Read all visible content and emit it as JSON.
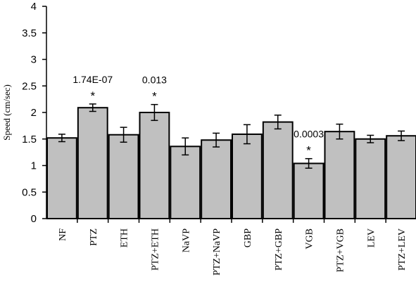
{
  "chart_data": {
    "type": "bar",
    "title": "",
    "xlabel": "",
    "ylabel": "Speed (cm/sec)",
    "ylim": [
      0,
      4
    ],
    "yticks": [
      "0",
      "0.5",
      "1",
      "1.5",
      "2",
      "2.5",
      "3",
      "3.5",
      "4"
    ],
    "grid": false,
    "legend": "none",
    "categories": [
      "NF",
      "PTZ",
      "ETH",
      "PTZ+ETH",
      "NaVP",
      "PTZ+NaVP",
      "GBP",
      "PTZ+GBP",
      "VGB",
      "PTZ+VGB",
      "LEV",
      "PTZ+LEV"
    ],
    "values": [
      1.52,
      2.09,
      1.58,
      2.0,
      1.36,
      1.48,
      1.59,
      1.82,
      1.04,
      1.64,
      1.5,
      1.56
    ],
    "errors": [
      0.07,
      0.07,
      0.14,
      0.15,
      0.16,
      0.13,
      0.18,
      0.13,
      0.09,
      0.14,
      0.07,
      0.09
    ],
    "annotations": [
      {
        "category": "PTZ",
        "pvalue": "1.74E-07",
        "marker": "*"
      },
      {
        "category": "PTZ+ETH",
        "pvalue": "0.013",
        "marker": "*"
      },
      {
        "category": "VGB",
        "pvalue": "0.0003",
        "marker": "*"
      }
    ],
    "colors": {
      "bar_fill": "#c0c0c0",
      "bar_stroke": "#000000"
    }
  }
}
